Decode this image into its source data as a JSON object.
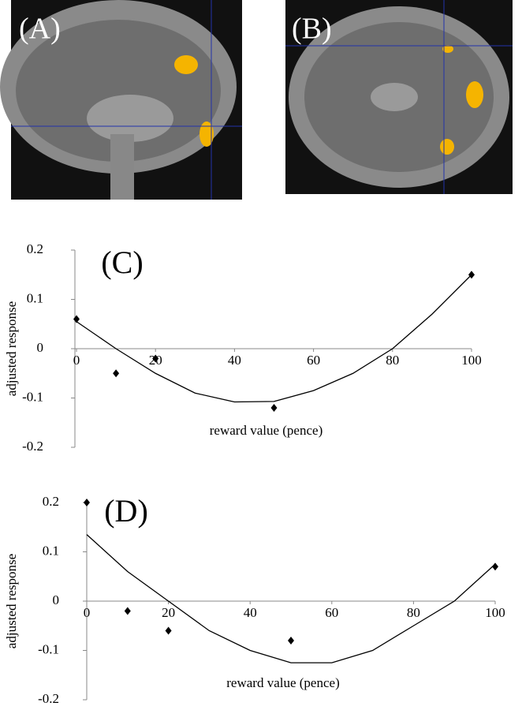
{
  "images": [
    {
      "label": "(A)"
    },
    {
      "label": "(B)"
    }
  ],
  "chart_data": [
    {
      "type": "scatter",
      "label": "(C)",
      "xlabel": "reward value (pence)",
      "ylabel": "adjusted response",
      "x": [
        0,
        10,
        20,
        50,
        100
      ],
      "values": [
        0.06,
        -0.05,
        -0.02,
        -0.12,
        0.15
      ],
      "color": "#000000",
      "fit": {
        "x": [
          0,
          10,
          20,
          30,
          40,
          50,
          60,
          70,
          80,
          90,
          100
        ],
        "values": [
          0.055,
          0.0,
          -0.05,
          -0.09,
          -0.108,
          -0.107,
          -0.085,
          -0.05,
          0.0,
          0.07,
          0.15
        ]
      },
      "xlim": [
        0,
        100
      ],
      "ylim": [
        -0.2,
        0.2
      ],
      "xticks": [
        0,
        20,
        40,
        60,
        80,
        100
      ],
      "yticks": [
        -0.2,
        -0.1,
        0,
        0.1,
        0.2
      ]
    },
    {
      "type": "scatter",
      "label": "(D)",
      "xlabel": "reward value (pence)",
      "ylabel": "adjusted response",
      "x": [
        0,
        10,
        20,
        50,
        100
      ],
      "values": [
        0.2,
        -0.02,
        -0.06,
        -0.08,
        0.07
      ],
      "color": "#000000",
      "fit": {
        "x": [
          0,
          10,
          20,
          30,
          40,
          50,
          60,
          70,
          80,
          90,
          100
        ],
        "values": [
          0.135,
          0.06,
          0.0,
          -0.06,
          -0.1,
          -0.125,
          -0.125,
          -0.1,
          -0.05,
          0.0,
          0.075
        ]
      },
      "xlim": [
        0,
        100
      ],
      "ylim": [
        -0.2,
        0.2
      ],
      "xticks": [
        0,
        20,
        40,
        60,
        80,
        100
      ],
      "yticks": [
        -0.2,
        -0.1,
        0,
        0.1,
        0.2
      ]
    }
  ]
}
